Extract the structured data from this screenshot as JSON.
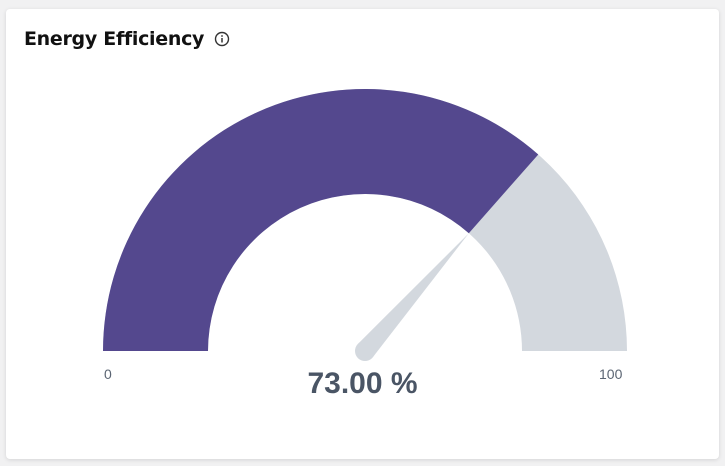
{
  "widget": {
    "title": "Energy Efficiency",
    "info_icon": "info-icon"
  },
  "gauge": {
    "min_label": "0",
    "max_label": "100",
    "value_text": "73.00 %",
    "value": 73,
    "min": 0,
    "max": 100,
    "fill_color": "#54488e",
    "track_color": "#d3d8de",
    "needle_color": "#d3d8de",
    "value_color": "#4a5565"
  }
}
